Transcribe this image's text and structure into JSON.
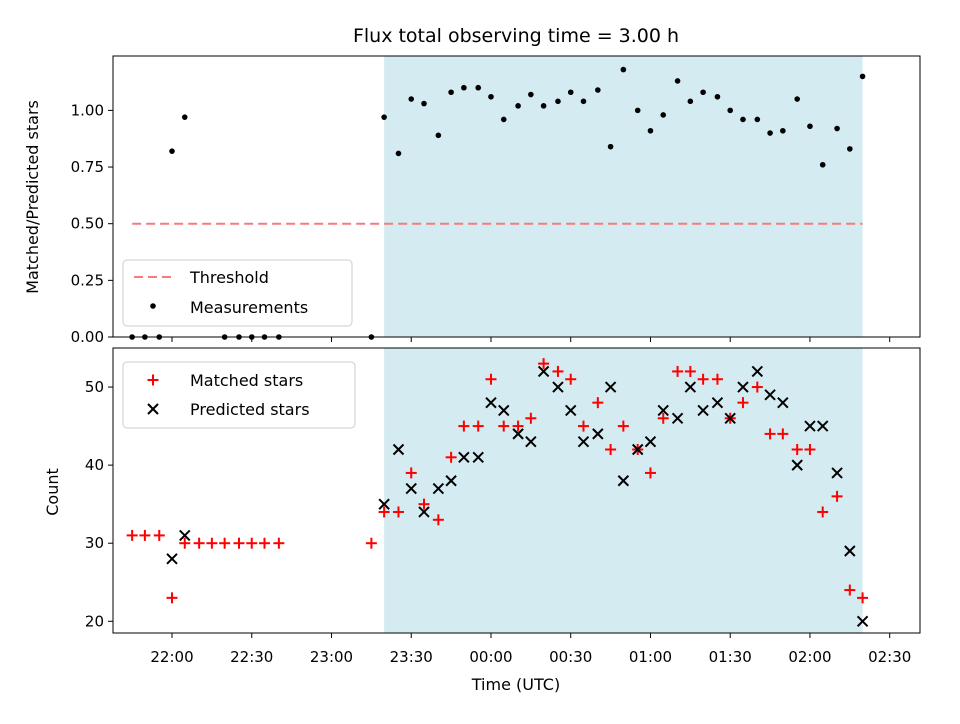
{
  "title": "Flux total observing time = 3.00 h",
  "colors": {
    "shade": "#d4ebf1",
    "threshold": "#f47c7c",
    "measurements": "#000000",
    "matched": "#ff0000",
    "predicted": "#000000"
  },
  "chart_data": [
    {
      "type": "scatter",
      "panel": "top",
      "ylabel": "Matched/Predicted stars",
      "ylim": [
        0,
        1.24
      ],
      "yticks": [
        0.0,
        0.25,
        0.5,
        0.75,
        1.0
      ],
      "ytick_labels": [
        "0.00",
        "0.25",
        "0.50",
        "0.75",
        "1.00"
      ],
      "xlim_hours_after_2200": [
        -0.37,
        4.69
      ],
      "shaded_region_hours_after_2200": [
        1.33,
        4.33
      ],
      "legend_placement": "bottom-left",
      "threshold": {
        "name": "Threshold",
        "value": 0.5,
        "x_range_hours_after_2200": [
          -0.25,
          4.33
        ]
      },
      "measurements": {
        "name": "Measurements",
        "x": [
          -0.25,
          -0.17,
          -0.08,
          0.0,
          0.08,
          0.33,
          0.42,
          0.5,
          0.58,
          0.67,
          1.25,
          1.33,
          1.42,
          1.5,
          1.58,
          1.67,
          1.75,
          1.83,
          1.92,
          2.0,
          2.08,
          2.17,
          2.25,
          2.33,
          2.42,
          2.5,
          2.58,
          2.67,
          2.75,
          2.83,
          2.92,
          3.0,
          3.08,
          3.17,
          3.25,
          3.33,
          3.42,
          3.5,
          3.58,
          3.67,
          3.75,
          3.83,
          3.92,
          4.0,
          4.08,
          4.17,
          4.25,
          4.33
        ],
        "y": [
          0.0,
          0.0,
          0.0,
          0.82,
          0.97,
          0.0,
          0.0,
          0.0,
          0.0,
          0.0,
          0.0,
          0.97,
          0.81,
          1.05,
          1.03,
          0.89,
          1.08,
          1.1,
          1.1,
          1.06,
          0.96,
          1.02,
          1.07,
          1.02,
          1.04,
          1.08,
          1.04,
          1.09,
          0.84,
          1.18,
          1.0,
          0.91,
          0.98,
          1.13,
          1.04,
          1.08,
          1.06,
          1.0,
          0.96,
          0.96,
          0.9,
          0.91,
          1.05,
          0.93,
          0.76,
          0.92,
          0.83,
          1.15
        ]
      }
    },
    {
      "type": "scatter",
      "panel": "bottom",
      "xlabel": "Time (UTC)",
      "ylabel": "Count",
      "ylim": [
        18.5,
        55
      ],
      "yticks": [
        20,
        30,
        40,
        50
      ],
      "ytick_labels": [
        "20",
        "30",
        "40",
        "50"
      ],
      "xticks_hours_after_2200": [
        0,
        0.5,
        1,
        1.5,
        2,
        2.5,
        3,
        3.5,
        4,
        4.5
      ],
      "xtick_labels": [
        "22:00",
        "22:30",
        "23:00",
        "23:30",
        "00:00",
        "00:30",
        "01:00",
        "01:30",
        "02:00",
        "02:30"
      ],
      "legend_placement": "top-left",
      "series": [
        {
          "name": "Matched stars",
          "x": [
            -0.25,
            -0.17,
            -0.08,
            0.0,
            0.08,
            0.17,
            0.25,
            0.33,
            0.42,
            0.5,
            0.58,
            0.67,
            1.25,
            1.33,
            1.42,
            1.5,
            1.58,
            1.67,
            1.75,
            1.83,
            1.92,
            2.0,
            2.08,
            2.17,
            2.25,
            2.33,
            2.42,
            2.5,
            2.58,
            2.67,
            2.75,
            2.83,
            2.92,
            3.0,
            3.08,
            3.17,
            3.25,
            3.33,
            3.42,
            3.5,
            3.58,
            3.67,
            3.75,
            3.83,
            3.92,
            4.0,
            4.08,
            4.17,
            4.25,
            4.33
          ],
          "y": [
            31,
            31,
            31,
            23,
            30,
            30,
            30,
            30,
            30,
            30,
            30,
            30,
            30,
            34,
            34,
            39,
            35,
            33,
            41,
            45,
            45,
            51,
            45,
            45,
            46,
            53,
            52,
            51,
            45,
            48,
            42,
            45,
            42,
            39,
            46,
            52,
            52,
            51,
            51,
            46,
            48,
            50,
            44,
            44,
            42,
            42,
            34,
            36,
            24,
            23
          ]
        },
        {
          "name": "Predicted stars",
          "x": [
            0.0,
            0.08,
            1.33,
            1.42,
            1.5,
            1.58,
            1.67,
            1.75,
            1.83,
            1.92,
            2.0,
            2.08,
            2.17,
            2.25,
            2.33,
            2.42,
            2.5,
            2.58,
            2.67,
            2.75,
            2.83,
            2.92,
            3.0,
            3.08,
            3.17,
            3.25,
            3.33,
            3.42,
            3.5,
            3.58,
            3.67,
            3.75,
            3.83,
            3.92,
            4.0,
            4.08,
            4.17,
            4.25,
            4.33
          ],
          "y": [
            28,
            31,
            35,
            42,
            37,
            34,
            37,
            38,
            41,
            41,
            48,
            47,
            44,
            43,
            52,
            50,
            47,
            43,
            44,
            50,
            38,
            42,
            43,
            47,
            46,
            50,
            47,
            48,
            46,
            50,
            52,
            49,
            48,
            40,
            45,
            45,
            39,
            29,
            20
          ]
        }
      ]
    }
  ]
}
